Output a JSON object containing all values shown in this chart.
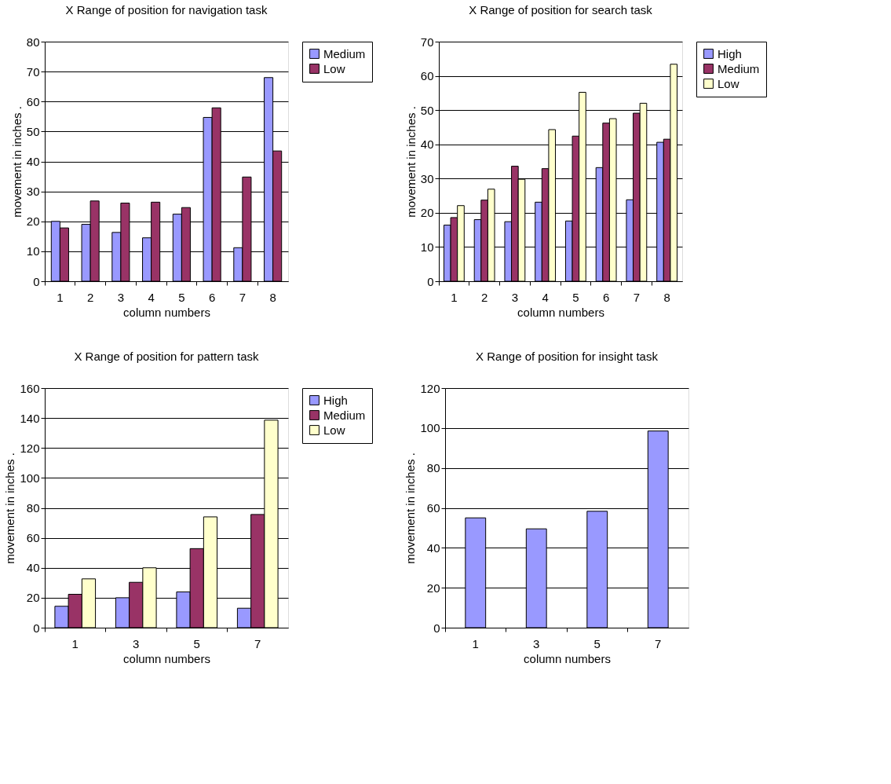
{
  "chart_data": [
    {
      "type": "bar",
      "title": "X Range of position for navigation task",
      "xlabel": "column numbers",
      "ylabel": "movement in inches .",
      "categories": [
        "1",
        "2",
        "3",
        "4",
        "5",
        "6",
        "7",
        "8"
      ],
      "ylim": [
        0,
        80
      ],
      "yticks": [
        0,
        10,
        20,
        30,
        40,
        50,
        60,
        70,
        80
      ],
      "grid": "y",
      "legend": "right",
      "series": [
        {
          "name": "Medium",
          "color": "#9999ff",
          "values": [
            20,
            19,
            16.3,
            14.5,
            22.4,
            54.7,
            11.2,
            68
          ]
        },
        {
          "name": "Low",
          "color": "#993366",
          "values": [
            17.8,
            26.8,
            26.1,
            26.4,
            24.6,
            57.9,
            34.8,
            43.5
          ]
        }
      ]
    },
    {
      "type": "bar",
      "title": "X Range of position for search task",
      "xlabel": "column numbers",
      "ylabel": "movement in inches .",
      "categories": [
        "1",
        "2",
        "3",
        "4",
        "5",
        "6",
        "7",
        "8"
      ],
      "ylim": [
        0,
        70
      ],
      "yticks": [
        0,
        10,
        20,
        30,
        40,
        50,
        60,
        70
      ],
      "grid": "y",
      "legend": "right",
      "series": [
        {
          "name": "High",
          "color": "#9999ff",
          "values": [
            16.4,
            18,
            17.4,
            23.1,
            17.6,
            33.2,
            23.8,
            40.6
          ]
        },
        {
          "name": "Medium",
          "color": "#993366",
          "values": [
            18.6,
            23.7,
            33.6,
            32.9,
            42.4,
            46.2,
            49.1,
            41.5
          ]
        },
        {
          "name": "Low",
          "color": "#ffffcc",
          "values": [
            22.1,
            26.9,
            29.8,
            44.3,
            55.2,
            47.5,
            52,
            63.4
          ]
        }
      ]
    },
    {
      "type": "bar",
      "title": "X Range of position for pattern task",
      "xlabel": "column numbers",
      "ylabel": "movement in inches .",
      "categories": [
        "1",
        "3",
        "5",
        "7"
      ],
      "ylim": [
        0,
        160
      ],
      "yticks": [
        0,
        20,
        40,
        60,
        80,
        100,
        120,
        140,
        160
      ],
      "grid": "y",
      "legend": "right",
      "series": [
        {
          "name": "High",
          "color": "#9999ff",
          "values": [
            14.3,
            20,
            23.9,
            13
          ]
        },
        {
          "name": "Medium",
          "color": "#993366",
          "values": [
            22.3,
            30.3,
            52.8,
            75.6
          ]
        },
        {
          "name": "Low",
          "color": "#ffffcc",
          "values": [
            32.6,
            40,
            74,
            138.6
          ]
        }
      ]
    },
    {
      "type": "bar",
      "title": "X Range of position for insight task",
      "xlabel": "column numbers",
      "ylabel": "movement in inches .",
      "categories": [
        "1",
        "3",
        "5",
        "7"
      ],
      "ylim": [
        0,
        120
      ],
      "yticks": [
        0,
        20,
        40,
        60,
        80,
        100,
        120
      ],
      "grid": "y",
      "series": [
        {
          "color": "#9999ff",
          "values": [
            55,
            49.5,
            58.3,
            98.5
          ]
        }
      ]
    }
  ]
}
